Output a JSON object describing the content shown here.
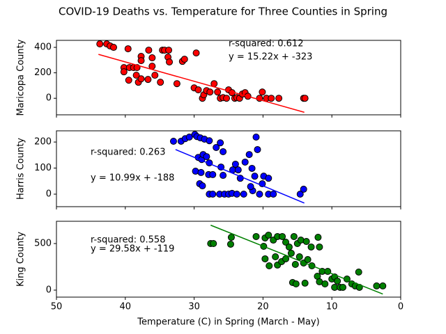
{
  "title": "COVID-19 Deaths vs. Temperature for Three Counties in Spring",
  "chart_data": [
    {
      "type": "scatter",
      "ylabel": "Maricopa County",
      "xlim": [
        50,
        0
      ],
      "ylim": [
        -130,
        455
      ],
      "xticks": [
        50,
        40,
        30,
        20,
        10,
        0
      ],
      "yticks": [
        0,
        200,
        400
      ],
      "xtick_labels": false,
      "series": [
        {
          "color": "#ff0000",
          "x": [
            43.7,
            42.7,
            42.2,
            41.7,
            39.6,
            40.2,
            40.2,
            39.4,
            38.8,
            38.3,
            37.7,
            37.7,
            39.5,
            38.4,
            38.1,
            37.7,
            36.7,
            36.6,
            36.1,
            36.1,
            35.7,
            34.6,
            34.3,
            33.7,
            33.8,
            33.6,
            34.9,
            32.5,
            31.7,
            31.4,
            29.7,
            30.0,
            29.4,
            28.8,
            28.6,
            28.2,
            27.7,
            27.1,
            26.6,
            26.2,
            25.8,
            25.3,
            25.0,
            24.5,
            24.1,
            23.8,
            23.4,
            23.0,
            22.6,
            22.2,
            20.5,
            20.1,
            19.5,
            18.8,
            17.7,
            14.1,
            13.9
          ],
          "values": [
            427,
            427,
            411,
            400,
            389,
            241,
            208,
            241,
            241,
            241,
            329,
            296,
            142,
            181,
            126,
            153,
            148,
            378,
            318,
            252,
            181,
            378,
            378,
            378,
            323,
            285,
            126,
            115,
            290,
            307,
            356,
            82,
            66,
            0,
            27,
            60,
            49,
            115,
            49,
            0,
            5,
            0,
            66,
            44,
            0,
            5,
            0,
            33,
            44,
            16,
            0,
            49,
            0,
            0,
            0,
            0,
            0
          ]
        }
      ],
      "fit": {
        "color": "#ff0000",
        "x": [
          43.9,
          14
        ],
        "values": [
          345,
          -110
        ]
      },
      "annotations": [
        "r-squared: 0.612",
        "y = 15.22x + -323"
      ]
    },
    {
      "type": "scatter",
      "ylabel": "Harris County",
      "xlim": [
        50,
        0
      ],
      "ylim": [
        -48,
        243
      ],
      "xticks": [
        50,
        40,
        30,
        20,
        10,
        0
      ],
      "yticks": [
        0,
        100,
        200
      ],
      "xtick_labels": false,
      "series": [
        {
          "color": "#0000ff",
          "x": [
            33.0,
            31.9,
            31.3,
            30.7,
            29.9,
            29.6,
            29.1,
            28.5,
            27.8,
            29.4,
            28.9,
            28.7,
            29.8,
            29.0,
            29.2,
            28.8,
            28.2,
            27.8,
            27.9,
            27.3,
            27.8,
            27.3,
            26.8,
            26.2,
            25.8,
            26.1,
            25.8,
            26.3,
            25.6,
            25.0,
            24.5,
            24.4,
            24.0,
            23.6,
            23.3,
            23.8,
            22.8,
            22.0,
            22.6,
            21.6,
            21.0,
            20.8,
            21.5,
            20.5,
            20.1,
            21.8,
            21.2,
            19.9,
            19.2,
            19.2,
            18.5,
            14.6,
            14.1
          ],
          "values": [
            203,
            203,
            213,
            219,
            229,
            221,
            216,
            211,
            205,
            141,
            133,
            152,
            88,
            83,
            40,
            32,
            144,
            120,
            75,
            75,
            0,
            0,
            179,
            197,
            163,
            104,
            72,
            0,
            0,
            0,
            3,
            93,
            115,
            93,
            61,
            0,
            0,
            152,
            123,
            99,
            219,
            171,
            13,
            0,
            40,
            29,
            69,
            69,
            61,
            0,
            0,
            0,
            19
          ]
        }
      ],
      "fit": {
        "color": "#0000ff",
        "x": [
          32.7,
          14
        ],
        "values": [
          171,
          -34
        ]
      },
      "annotations": [
        "r-squared: 0.263",
        "y = 10.99x + -188"
      ]
    },
    {
      "type": "scatter",
      "ylabel": "King County",
      "xlabel": "Temperature (C) in Spring (March - May)",
      "xlim": [
        50,
        0
      ],
      "ylim": [
        -75,
        739
      ],
      "xticks": [
        50,
        40,
        30,
        20,
        10,
        0
      ],
      "yticks": [
        0,
        500
      ],
      "xtick_labels": true,
      "series": [
        {
          "color": "#008000",
          "x": [
            27.6,
            27.2,
            24.6,
            24.7,
            21.0,
            19.7,
            19.9,
            19.2,
            18.5,
            17.9,
            17.2,
            16.7,
            16.2,
            15.5,
            15.0,
            14.5,
            13.7,
            13.0,
            12.0,
            11.8,
            19.7,
            19.1,
            18.2,
            17.9,
            17.3,
            16.7,
            15.9,
            15.3,
            14.7,
            14.1,
            13.5,
            12.9,
            15.7,
            15.2,
            13.9,
            12.1,
            11.8,
            11.4,
            11.0,
            10.6,
            10.0,
            9.6,
            9.2,
            9.6,
            8.8,
            8.4,
            7.8,
            7.1,
            6.6,
            6.1,
            6.0,
            3.5,
            2.6
          ],
          "values": [
            500,
            500,
            567,
            493,
            575,
            560,
            470,
            590,
            537,
            575,
            575,
            515,
            463,
            575,
            500,
            537,
            522,
            463,
            567,
            463,
            336,
            261,
            358,
            269,
            306,
            336,
            396,
            276,
            358,
            291,
            328,
            261,
            82,
            67,
            75,
            149,
            90,
            201,
            67,
            201,
            119,
            142,
            97,
            30,
            30,
            30,
            119,
            67,
            45,
            194,
            30,
            45,
            45
          ]
        }
      ],
      "fit": {
        "color": "#008000",
        "x": [
          27.6,
          2.6
        ],
        "values": [
          697,
          -42
        ]
      },
      "annotations": [
        "r-squared: 0.558",
        "y = 29.58x + -119"
      ]
    }
  ]
}
